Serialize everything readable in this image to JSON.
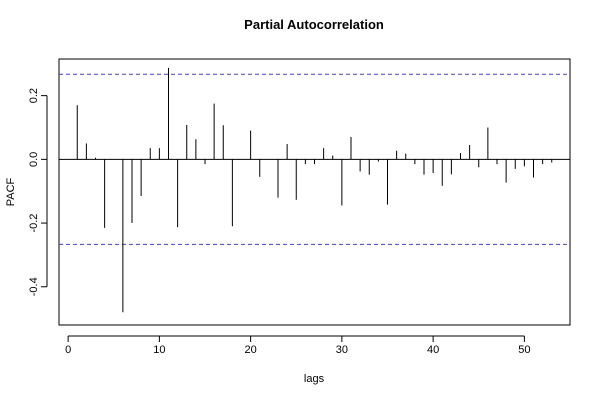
{
  "chart_data": {
    "type": "bar",
    "title": "Partial Autocorrelation",
    "xlabel": "lags",
    "ylabel": "PACF",
    "xlim": [
      -1,
      55
    ],
    "ylim": [
      -0.52,
      0.315
    ],
    "x_ticks": [
      0,
      10,
      20,
      30,
      40,
      50
    ],
    "y_ticks": [
      -0.4,
      -0.2,
      0.0,
      0.2
    ],
    "x_tick_labels": [
      "0",
      "10",
      "20",
      "30",
      "40",
      "50"
    ],
    "y_tick_labels": [
      "-0.4",
      "-0.2",
      "0.0",
      "0.2"
    ],
    "confidence_band": [
      -0.267,
      0.267
    ],
    "band_color": "#4040c0",
    "bar_color": "#000000",
    "lags": [
      1,
      2,
      3,
      4,
      5,
      6,
      7,
      8,
      9,
      10,
      11,
      12,
      13,
      14,
      15,
      16,
      17,
      18,
      19,
      20,
      21,
      22,
      23,
      24,
      25,
      26,
      27,
      28,
      29,
      30,
      31,
      32,
      33,
      34,
      35,
      36,
      37,
      38,
      39,
      40,
      41,
      42,
      43,
      44,
      45,
      46,
      47,
      48,
      49,
      50,
      51,
      52,
      53
    ],
    "values": [
      0.17,
      0.05,
      0.005,
      -0.215,
      0.0,
      -0.48,
      -0.2,
      -0.115,
      0.035,
      0.035,
      0.287,
      -0.213,
      0.108,
      0.063,
      -0.015,
      0.175,
      0.107,
      -0.21,
      0.0,
      0.09,
      -0.055,
      0.0,
      -0.12,
      0.048,
      -0.127,
      -0.015,
      -0.015,
      0.035,
      0.012,
      -0.145,
      0.07,
      -0.038,
      -0.048,
      -0.007,
      -0.142,
      0.027,
      0.018,
      -0.015,
      -0.048,
      -0.043,
      -0.083,
      -0.047,
      0.02,
      0.045,
      -0.025,
      0.1,
      -0.015,
      -0.073,
      -0.03,
      -0.022,
      -0.057,
      -0.015,
      -0.01
    ]
  }
}
